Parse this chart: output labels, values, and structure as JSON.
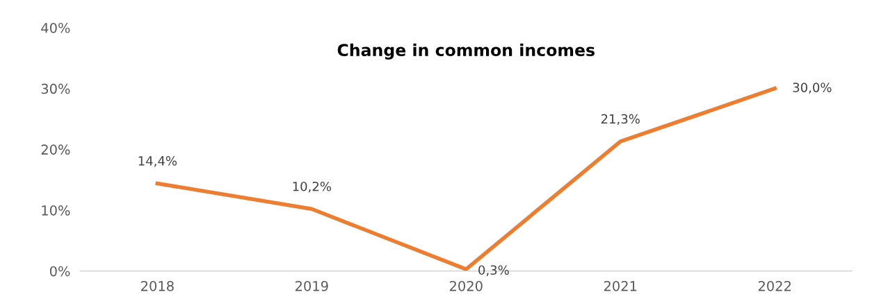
{
  "chart_data": {
    "type": "line",
    "title": "Change in common incomes",
    "categories": [
      "2018",
      "2019",
      "2020",
      "2021",
      "2022"
    ],
    "series": [
      {
        "color": "#ed7d31",
        "values": [
          14.4,
          10.2,
          0.3,
          21.3,
          30.0
        ],
        "value_labels": [
          "14,4%",
          "10,2%",
          "0,3%",
          "21,3%",
          "30,0%"
        ]
      }
    ],
    "ylim": [
      0,
      40
    ],
    "yticks": [
      {
        "value": 0,
        "label": "0%"
      },
      {
        "value": 10,
        "label": "10%"
      },
      {
        "value": 20,
        "label": "20%"
      },
      {
        "value": 30,
        "label": "30%"
      },
      {
        "value": 40,
        "label": "40%"
      }
    ],
    "grid": false,
    "legend": false,
    "marker": "none",
    "line_style": "solid"
  }
}
